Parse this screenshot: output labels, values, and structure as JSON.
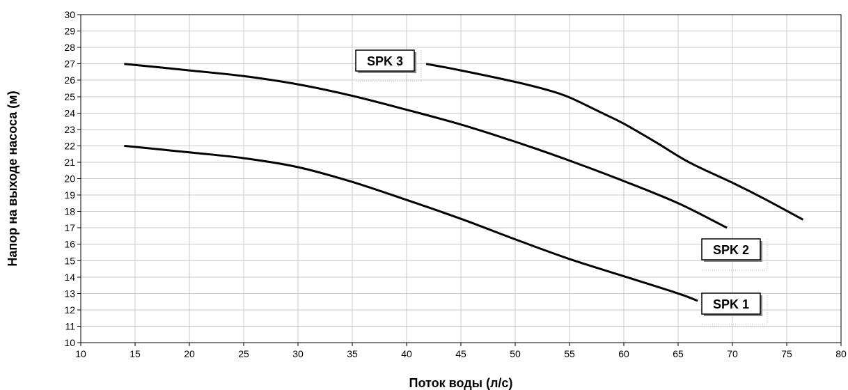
{
  "chart_data": {
    "type": "line",
    "xlabel": "Поток воды (л/с)",
    "ylabel": "Напор на выходе насоса (м)",
    "xlim": [
      10,
      80
    ],
    "ylim": [
      10,
      30
    ],
    "xticks": [
      10,
      15,
      20,
      25,
      30,
      35,
      40,
      45,
      50,
      55,
      60,
      65,
      70,
      75,
      80
    ],
    "yticks": [
      10,
      11,
      12,
      13,
      14,
      15,
      16,
      17,
      18,
      19,
      20,
      21,
      22,
      23,
      24,
      25,
      26,
      27,
      28,
      29,
      30
    ],
    "grid": true,
    "series": [
      {
        "name": "SPK 1",
        "points": [
          [
            14,
            22.0
          ],
          [
            20,
            21.6
          ],
          [
            25,
            21.25
          ],
          [
            30,
            20.7
          ],
          [
            35,
            19.8
          ],
          [
            40,
            18.7
          ],
          [
            45,
            17.55
          ],
          [
            50,
            16.3
          ],
          [
            55,
            15.1
          ],
          [
            60,
            14.05
          ],
          [
            65,
            13.0
          ],
          [
            66.8,
            12.55
          ]
        ]
      },
      {
        "name": "SPK 2",
        "points": [
          [
            14,
            27.0
          ],
          [
            20,
            26.6
          ],
          [
            25,
            26.25
          ],
          [
            30,
            25.75
          ],
          [
            35,
            25.05
          ],
          [
            40,
            24.2
          ],
          [
            45,
            23.3
          ],
          [
            50,
            22.25
          ],
          [
            55,
            21.1
          ],
          [
            60,
            19.85
          ],
          [
            65,
            18.5
          ],
          [
            69.5,
            17.0
          ]
        ]
      },
      {
        "name": "SPK 3",
        "points": [
          [
            41.8,
            27.0
          ],
          [
            45,
            26.6
          ],
          [
            50,
            25.9
          ],
          [
            53,
            25.4
          ],
          [
            55,
            24.95
          ],
          [
            58,
            24.0
          ],
          [
            60,
            23.35
          ],
          [
            63,
            22.2
          ],
          [
            66,
            21.0
          ],
          [
            70,
            19.75
          ],
          [
            73,
            18.75
          ],
          [
            76.5,
            17.5
          ]
        ]
      }
    ]
  }
}
